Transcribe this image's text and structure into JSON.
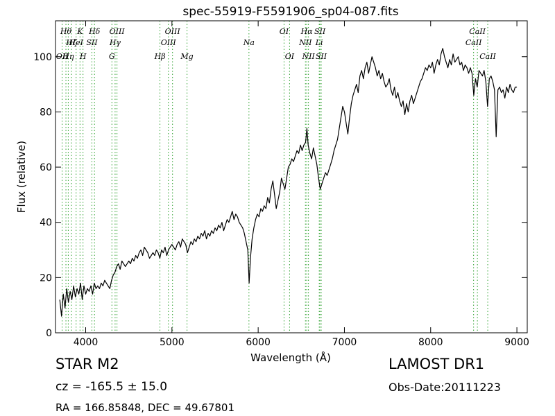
{
  "chart_data": {
    "type": "line",
    "title": "spec-55919-F5591906_sp04-087.fits",
    "xlabel": "Wavelength (Å)",
    "ylabel": "Flux (relative)",
    "xlim": [
      3650,
      9120
    ],
    "ylim": [
      0,
      113
    ],
    "xticks": [
      4000,
      5000,
      6000,
      7000,
      8000,
      9000
    ],
    "yticks": [
      0,
      20,
      40,
      60,
      80,
      100
    ],
    "grid": false,
    "series": [
      {
        "color": "#000000",
        "points": [
          [
            3700,
            12
          ],
          [
            3720,
            6
          ],
          [
            3740,
            14
          ],
          [
            3760,
            9
          ],
          [
            3780,
            16
          ],
          [
            3800,
            11
          ],
          [
            3820,
            15
          ],
          [
            3840,
            12
          ],
          [
            3860,
            17
          ],
          [
            3880,
            13
          ],
          [
            3900,
            16
          ],
          [
            3920,
            14
          ],
          [
            3940,
            18
          ],
          [
            3960,
            12
          ],
          [
            3980,
            17
          ],
          [
            4000,
            14
          ],
          [
            4020,
            16
          ],
          [
            4040,
            15
          ],
          [
            4060,
            17
          ],
          [
            4080,
            14
          ],
          [
            4100,
            18
          ],
          [
            4120,
            16
          ],
          [
            4140,
            17
          ],
          [
            4160,
            16
          ],
          [
            4180,
            18
          ],
          [
            4200,
            17
          ],
          [
            4220,
            19
          ],
          [
            4240,
            18
          ],
          [
            4260,
            17
          ],
          [
            4280,
            16
          ],
          [
            4300,
            19
          ],
          [
            4320,
            21
          ],
          [
            4340,
            22
          ],
          [
            4360,
            24
          ],
          [
            4380,
            25
          ],
          [
            4400,
            23
          ],
          [
            4420,
            26
          ],
          [
            4440,
            25
          ],
          [
            4460,
            24
          ],
          [
            4480,
            25
          ],
          [
            4500,
            26
          ],
          [
            4520,
            25
          ],
          [
            4540,
            27
          ],
          [
            4560,
            26
          ],
          [
            4580,
            28
          ],
          [
            4600,
            27
          ],
          [
            4620,
            29
          ],
          [
            4640,
            30
          ],
          [
            4660,
            28
          ],
          [
            4680,
            31
          ],
          [
            4700,
            30
          ],
          [
            4720,
            29
          ],
          [
            4740,
            27
          ],
          [
            4760,
            28
          ],
          [
            4780,
            29
          ],
          [
            4800,
            28
          ],
          [
            4820,
            30
          ],
          [
            4840,
            29
          ],
          [
            4860,
            27
          ],
          [
            4880,
            30
          ],
          [
            4900,
            29
          ],
          [
            4920,
            31
          ],
          [
            4940,
            28
          ],
          [
            4960,
            30
          ],
          [
            4980,
            31
          ],
          [
            5000,
            32
          ],
          [
            5020,
            31
          ],
          [
            5040,
            30
          ],
          [
            5060,
            32
          ],
          [
            5080,
            33
          ],
          [
            5100,
            31
          ],
          [
            5120,
            34
          ],
          [
            5140,
            33
          ],
          [
            5160,
            32
          ],
          [
            5180,
            29
          ],
          [
            5200,
            31
          ],
          [
            5220,
            33
          ],
          [
            5240,
            32
          ],
          [
            5260,
            34
          ],
          [
            5280,
            33
          ],
          [
            5300,
            35
          ],
          [
            5320,
            34
          ],
          [
            5340,
            36
          ],
          [
            5360,
            35
          ],
          [
            5380,
            37
          ],
          [
            5400,
            34
          ],
          [
            5420,
            36
          ],
          [
            5440,
            35
          ],
          [
            5460,
            37
          ],
          [
            5480,
            36
          ],
          [
            5500,
            38
          ],
          [
            5520,
            37
          ],
          [
            5540,
            39
          ],
          [
            5560,
            38
          ],
          [
            5580,
            40
          ],
          [
            5600,
            37
          ],
          [
            5620,
            39
          ],
          [
            5640,
            41
          ],
          [
            5660,
            40
          ],
          [
            5680,
            42
          ],
          [
            5700,
            44
          ],
          [
            5720,
            41
          ],
          [
            5740,
            43
          ],
          [
            5760,
            42
          ],
          [
            5780,
            40
          ],
          [
            5800,
            39
          ],
          [
            5820,
            38
          ],
          [
            5840,
            36
          ],
          [
            5860,
            33
          ],
          [
            5880,
            30
          ],
          [
            5895,
            18
          ],
          [
            5910,
            27
          ],
          [
            5930,
            34
          ],
          [
            5950,
            38
          ],
          [
            5970,
            41
          ],
          [
            5990,
            43
          ],
          [
            6010,
            42
          ],
          [
            6030,
            45
          ],
          [
            6050,
            44
          ],
          [
            6070,
            46
          ],
          [
            6090,
            45
          ],
          [
            6110,
            49
          ],
          [
            6130,
            47
          ],
          [
            6150,
            52
          ],
          [
            6170,
            55
          ],
          [
            6190,
            50
          ],
          [
            6210,
            45
          ],
          [
            6230,
            48
          ],
          [
            6250,
            51
          ],
          [
            6270,
            56
          ],
          [
            6290,
            54
          ],
          [
            6310,
            52
          ],
          [
            6330,
            56
          ],
          [
            6350,
            60
          ],
          [
            6370,
            61
          ],
          [
            6390,
            63
          ],
          [
            6410,
            62
          ],
          [
            6430,
            64
          ],
          [
            6450,
            66
          ],
          [
            6470,
            65
          ],
          [
            6490,
            68
          ],
          [
            6510,
            66
          ],
          [
            6530,
            68
          ],
          [
            6550,
            69
          ],
          [
            6565,
            74
          ],
          [
            6580,
            68
          ],
          [
            6600,
            65
          ],
          [
            6620,
            63
          ],
          [
            6640,
            67
          ],
          [
            6660,
            64
          ],
          [
            6680,
            61
          ],
          [
            6700,
            56
          ],
          [
            6720,
            52
          ],
          [
            6740,
            54
          ],
          [
            6760,
            56
          ],
          [
            6780,
            58
          ],
          [
            6800,
            57
          ],
          [
            6820,
            59
          ],
          [
            6840,
            61
          ],
          [
            6860,
            63
          ],
          [
            6880,
            66
          ],
          [
            6900,
            68
          ],
          [
            6920,
            70
          ],
          [
            6940,
            74
          ],
          [
            6960,
            78
          ],
          [
            6980,
            82
          ],
          [
            7000,
            80
          ],
          [
            7020,
            76
          ],
          [
            7040,
            72
          ],
          [
            7060,
            78
          ],
          [
            7080,
            83
          ],
          [
            7100,
            86
          ],
          [
            7120,
            88
          ],
          [
            7140,
            90
          ],
          [
            7160,
            87
          ],
          [
            7180,
            93
          ],
          [
            7200,
            95
          ],
          [
            7220,
            92
          ],
          [
            7240,
            96
          ],
          [
            7260,
            98
          ],
          [
            7280,
            94
          ],
          [
            7300,
            97
          ],
          [
            7320,
            100
          ],
          [
            7340,
            98
          ],
          [
            7360,
            96
          ],
          [
            7380,
            93
          ],
          [
            7400,
            95
          ],
          [
            7420,
            92
          ],
          [
            7440,
            94
          ],
          [
            7460,
            91
          ],
          [
            7480,
            89
          ],
          [
            7500,
            90
          ],
          [
            7520,
            92
          ],
          [
            7540,
            88
          ],
          [
            7560,
            86
          ],
          [
            7580,
            89
          ],
          [
            7600,
            85
          ],
          [
            7620,
            87
          ],
          [
            7640,
            84
          ],
          [
            7660,
            82
          ],
          [
            7680,
            84
          ],
          [
            7700,
            79
          ],
          [
            7720,
            83
          ],
          [
            7740,
            80
          ],
          [
            7760,
            84
          ],
          [
            7780,
            86
          ],
          [
            7800,
            83
          ],
          [
            7820,
            85
          ],
          [
            7840,
            87
          ],
          [
            7860,
            89
          ],
          [
            7880,
            91
          ],
          [
            7900,
            92
          ],
          [
            7920,
            94
          ],
          [
            7940,
            96
          ],
          [
            7960,
            95
          ],
          [
            7980,
            97
          ],
          [
            8000,
            96
          ],
          [
            8020,
            98
          ],
          [
            8040,
            94
          ],
          [
            8060,
            97
          ],
          [
            8080,
            99
          ],
          [
            8100,
            97
          ],
          [
            8120,
            101
          ],
          [
            8140,
            103
          ],
          [
            8160,
            100
          ],
          [
            8180,
            98
          ],
          [
            8200,
            96
          ],
          [
            8220,
            99
          ],
          [
            8240,
            97
          ],
          [
            8260,
            101
          ],
          [
            8280,
            98
          ],
          [
            8300,
            99
          ],
          [
            8320,
            100
          ],
          [
            8340,
            97
          ],
          [
            8360,
            98
          ],
          [
            8380,
            95
          ],
          [
            8400,
            97
          ],
          [
            8420,
            96
          ],
          [
            8440,
            94
          ],
          [
            8460,
            96
          ],
          [
            8480,
            94
          ],
          [
            8500,
            86
          ],
          [
            8520,
            92
          ],
          [
            8540,
            89
          ],
          [
            8560,
            95
          ],
          [
            8580,
            94
          ],
          [
            8600,
            93
          ],
          [
            8620,
            95
          ],
          [
            8640,
            91
          ],
          [
            8660,
            82
          ],
          [
            8680,
            92
          ],
          [
            8700,
            93
          ],
          [
            8720,
            91
          ],
          [
            8740,
            88
          ],
          [
            8760,
            71
          ],
          [
            8780,
            88
          ],
          [
            8800,
            89
          ],
          [
            8820,
            87
          ],
          [
            8840,
            88
          ],
          [
            8860,
            85
          ],
          [
            8880,
            89
          ],
          [
            8900,
            87
          ],
          [
            8920,
            90
          ],
          [
            8940,
            88
          ],
          [
            8960,
            87
          ],
          [
            8980,
            89
          ],
          [
            9000,
            89
          ]
        ]
      }
    ],
    "spectral_lines": [
      {
        "wavelength": 3727,
        "label": "OII",
        "row": 3
      },
      {
        "wavelength": 3771,
        "label": "Hθ",
        "row": 1
      },
      {
        "wavelength": 3798,
        "label": "Hη",
        "row": 3
      },
      {
        "wavelength": 3835,
        "label": "Hζ",
        "row": 2
      },
      {
        "wavelength": 3889,
        "label": "HeI",
        "row": 2
      },
      {
        "wavelength": 3934,
        "label": "K",
        "row": 1
      },
      {
        "wavelength": 3969,
        "label": "H",
        "row": 3
      },
      {
        "wavelength": 4072,
        "label": "SII",
        "row": 2
      },
      {
        "wavelength": 4102,
        "label": "Hδ",
        "row": 1
      },
      {
        "wavelength": 4304,
        "label": "G",
        "row": 3
      },
      {
        "wavelength": 4341,
        "label": "Hγ",
        "row": 2
      },
      {
        "wavelength": 4363,
        "label": "OIII",
        "row": 1
      },
      {
        "wavelength": 4861,
        "label": "Hβ",
        "row": 3
      },
      {
        "wavelength": 4959,
        "label": "OIII",
        "row": 2
      },
      {
        "wavelength": 5007,
        "label": "OIII",
        "row": 1
      },
      {
        "wavelength": 5175,
        "label": "Mg",
        "row": 3
      },
      {
        "wavelength": 5893,
        "label": "Na",
        "row": 2
      },
      {
        "wavelength": 6300,
        "label": "OI",
        "row": 1
      },
      {
        "wavelength": 6364,
        "label": "OI",
        "row": 3
      },
      {
        "wavelength": 6548,
        "label": "NII",
        "row": 2
      },
      {
        "wavelength": 6563,
        "label": "Hα",
        "row": 1
      },
      {
        "wavelength": 6583,
        "label": "NII",
        "row": 3
      },
      {
        "wavelength": 6708,
        "label": "Li",
        "row": 2
      },
      {
        "wavelength": 6716,
        "label": "SII",
        "row": 1
      },
      {
        "wavelength": 6731,
        "label": "SII",
        "row": 3
      },
      {
        "wavelength": 8498,
        "label": "CaII",
        "row": 2
      },
      {
        "wavelength": 8542,
        "label": "CaII",
        "row": 1
      },
      {
        "wavelength": 8662,
        "label": "CaII",
        "row": 3
      }
    ],
    "line_marker_color": "#2ca02c"
  },
  "info": {
    "object_class": "STAR   M2",
    "survey": "LAMOST DR1",
    "redshift": "cz = -165.5  ± 15.0",
    "obs_date": "Obs-Date:20111223",
    "coordinates": "RA = 166.85848, DEC = 49.67801"
  }
}
